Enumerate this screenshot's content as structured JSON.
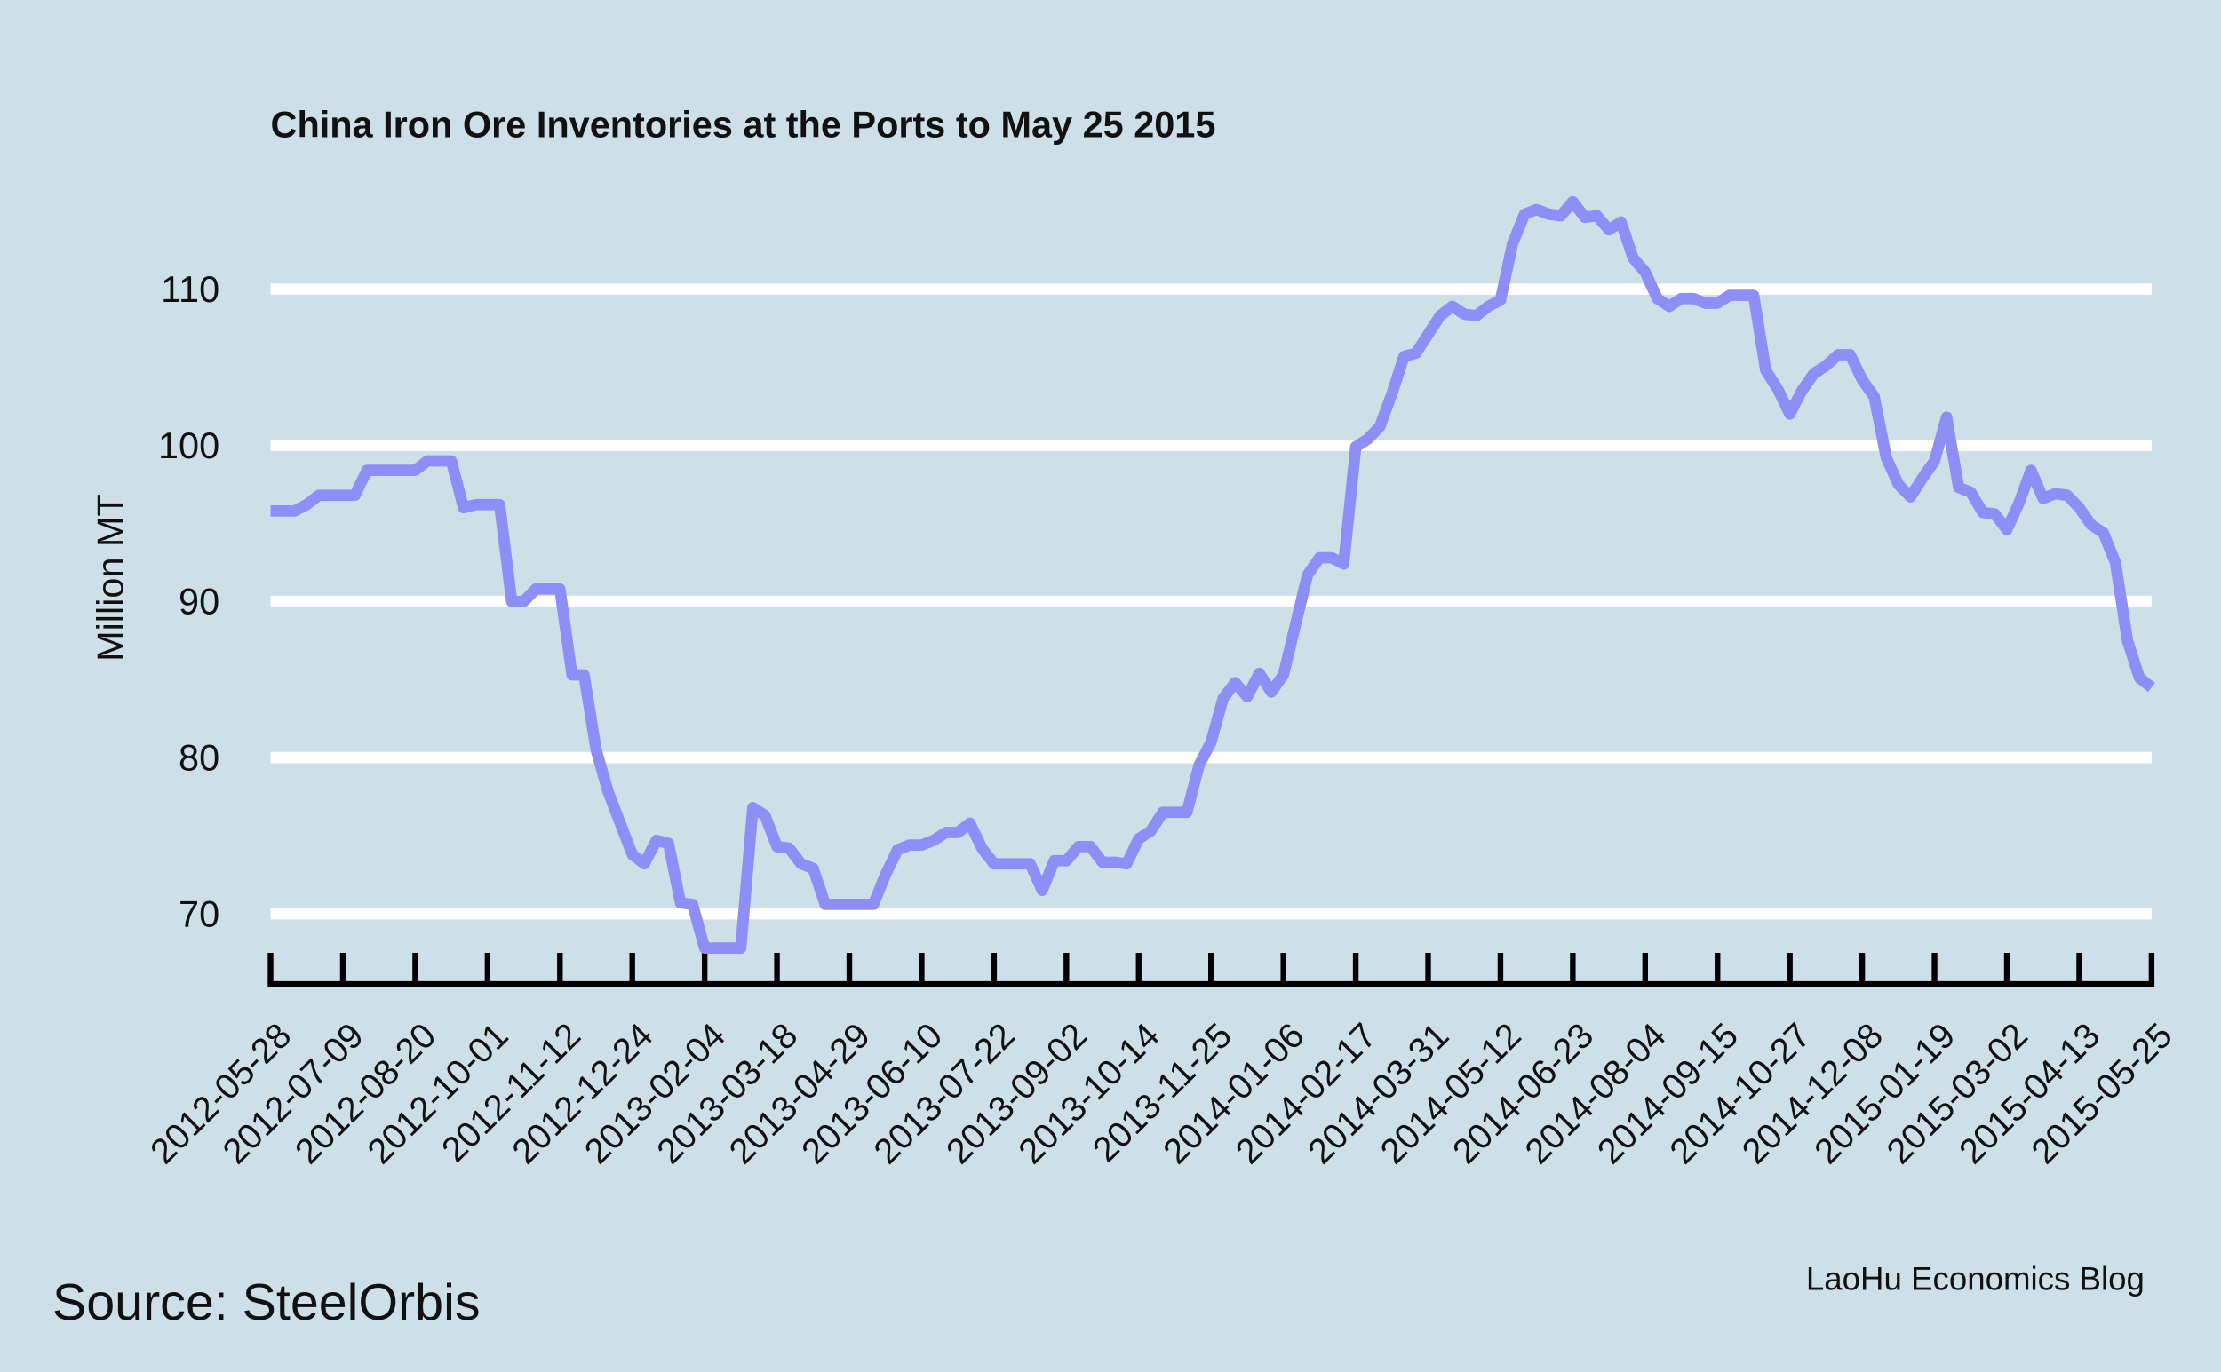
{
  "chart_data": {
    "type": "line",
    "title": "China Iron Ore Inventories at the Ports to May 25 2015",
    "y_label": "Million MT",
    "source": "Source: SteelOrbis",
    "credit": "LaoHu Economics Blog",
    "categories": [
      "2012-05-28",
      null,
      null,
      null,
      null,
      null,
      "2012-07-09",
      null,
      null,
      null,
      null,
      null,
      "2012-08-20",
      null,
      null,
      null,
      null,
      null,
      "2012-10-01",
      null,
      null,
      null,
      null,
      null,
      "2012-11-12",
      null,
      null,
      null,
      null,
      null,
      "2012-12-24",
      null,
      null,
      null,
      null,
      null,
      "2013-02-04",
      null,
      null,
      null,
      null,
      null,
      "2013-03-18",
      null,
      null,
      null,
      null,
      null,
      "2013-04-29",
      null,
      null,
      null,
      null,
      null,
      "2013-06-10",
      null,
      null,
      null,
      null,
      null,
      "2013-07-22",
      null,
      null,
      null,
      null,
      null,
      "2013-09-02",
      null,
      null,
      null,
      null,
      null,
      "2013-10-14",
      null,
      null,
      null,
      null,
      null,
      "2013-11-25",
      null,
      null,
      null,
      null,
      null,
      "2014-01-06",
      null,
      null,
      null,
      null,
      null,
      "2014-02-17",
      null,
      null,
      null,
      null,
      null,
      "2014-03-31",
      null,
      null,
      null,
      null,
      null,
      "2014-05-12",
      null,
      null,
      null,
      null,
      null,
      "2014-06-23",
      null,
      null,
      null,
      null,
      null,
      "2014-08-04",
      null,
      null,
      null,
      null,
      null,
      "2014-09-15",
      null,
      null,
      null,
      null,
      null,
      "2014-10-27",
      null,
      null,
      null,
      null,
      null,
      "2014-12-08",
      null,
      null,
      null,
      null,
      null,
      "2015-01-19",
      null,
      null,
      null,
      null,
      null,
      "2015-03-02",
      null,
      null,
      null,
      null,
      null,
      "2015-04-13",
      null,
      null,
      null,
      null,
      null,
      "2015-05-25"
    ],
    "series": [
      {
        "name": "Million MT",
        "color": "#8e8ef6",
        "values": [
          95.8,
          95.8,
          95.8,
          96.2,
          96.8,
          96.8,
          96.8,
          96.8,
          98.4,
          98.4,
          98.4,
          98.4,
          98.4,
          99,
          99,
          99,
          96,
          96.2,
          96.2,
          96.2,
          90,
          90,
          90.8,
          90.8,
          90.8,
          85.3,
          85.3,
          80.5,
          77.8,
          75.8,
          73.8,
          73.2,
          74.7,
          74.5,
          70.7,
          70.6,
          67.8,
          67.8,
          67.8,
          67.8,
          76.8,
          76.3,
          74.3,
          74.2,
          73.2,
          72.9,
          70.6,
          70.6,
          70.6,
          70.6,
          70.6,
          72.5,
          74.1,
          74.4,
          74.4,
          74.7,
          75.2,
          75.2,
          75.8,
          74.2,
          73.2,
          73.2,
          73.2,
          73.2,
          71.5,
          73.4,
          73.4,
          74.3,
          74.3,
          73.3,
          73.3,
          73.2,
          74.8,
          75.3,
          76.5,
          76.5,
          76.5,
          79.5,
          81,
          83.8,
          84.8,
          83.9,
          85.4,
          84.2,
          85.3,
          88.5,
          91.7,
          92.8,
          92.8,
          92.4,
          99.9,
          100.4,
          101.2,
          103.3,
          105.7,
          105.9,
          107.1,
          108.3,
          108.9,
          108.4,
          108.3,
          108.9,
          109.3,
          112.9,
          114.8,
          115.1,
          114.8,
          114.7,
          115.6,
          114.6,
          114.7,
          113.8,
          114.3,
          112,
          111.1,
          109.4,
          108.9,
          109.4,
          109.4,
          109.1,
          109.1,
          109.6,
          109.6,
          109.6,
          104.8,
          103.6,
          102,
          103.5,
          104.6,
          105.1,
          105.8,
          105.8,
          104.2,
          103.1,
          99.2,
          97.5,
          96.7,
          97.9,
          99,
          101.8,
          97.3,
          97,
          95.7,
          95.6,
          94.6,
          96.3,
          98.4,
          96.6,
          96.9,
          96.8,
          96,
          94.9,
          94.4,
          92.5,
          87.5,
          85.1,
          84.5
        ]
      }
    ],
    "ylim": [
      65.5,
      118
    ],
    "yticks": [
      70,
      80,
      90,
      100,
      110
    ],
    "grid": true
  }
}
